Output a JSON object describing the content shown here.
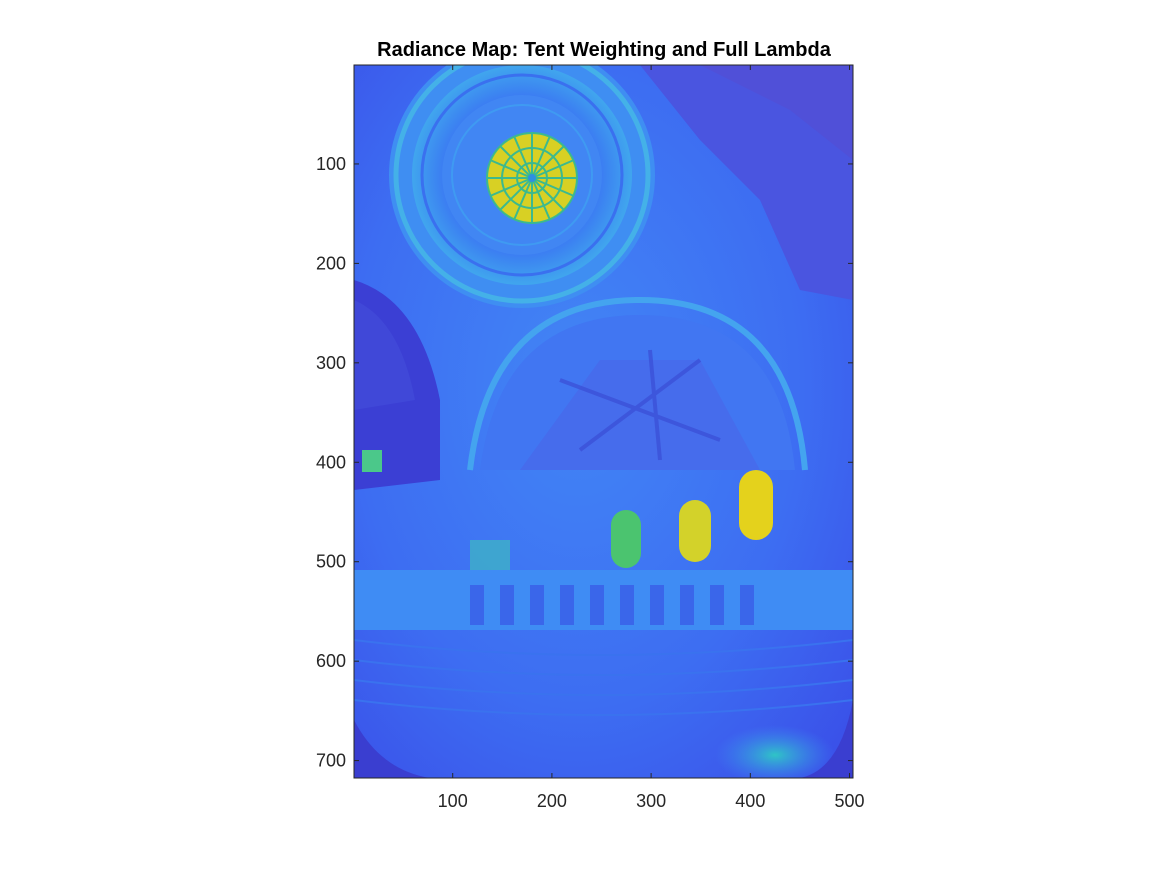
{
  "chart_data": {
    "type": "heatmap",
    "title": "Radiance Map: Tent Weighting and Full Lambda",
    "xlabel": "",
    "ylabel": "",
    "x_ticks": [
      100,
      200,
      300,
      400,
      500
    ],
    "y_ticks": [
      100,
      200,
      300,
      400,
      500,
      600,
      700
    ],
    "xlim": [
      0.5,
      503.5
    ],
    "ylim": [
      0.5,
      717.5
    ],
    "y_direction": "reverse",
    "colormap": "parula",
    "grid": false,
    "legend": "none",
    "image_description": "Fish-eye view looking up into a church dome interior rendered as a radiance (false-color) map; mostly blue, with the rose window at the top of the dome and three stained-glass windows rendered yellow-green (highest radiance)."
  },
  "colors": {
    "background_blue": "#3a5cf0",
    "dark_blue": "#3b2fd6",
    "light_blue": "#3f9af2",
    "cyan": "#30c2c0",
    "green": "#4bd27a",
    "yellow": "#e4d21c"
  }
}
